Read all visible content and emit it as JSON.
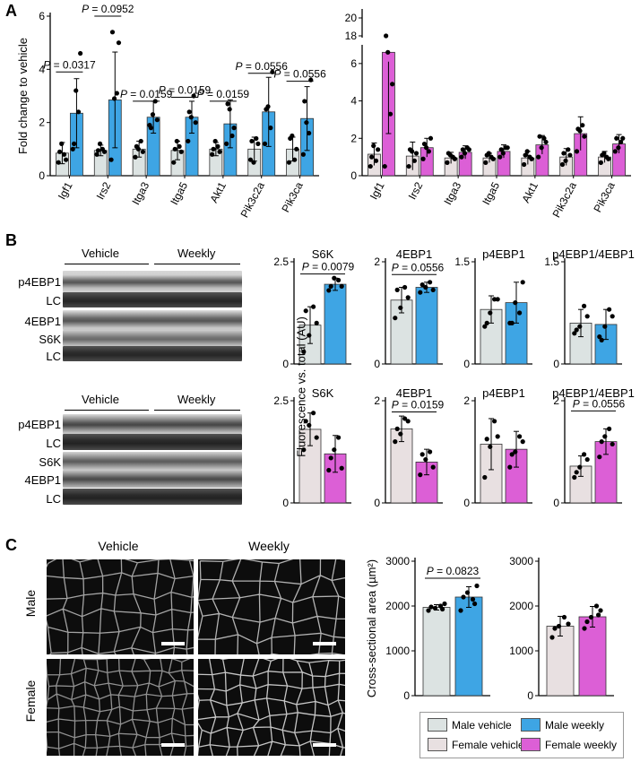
{
  "panels": {
    "A": "A",
    "B": "B",
    "C": "C"
  },
  "colors": {
    "male_vehicle": "#dce3e2",
    "male_weekly": "#3ea5e4",
    "female_vehicle": "#e8e0e1",
    "female_weekly": "#dc5fd6"
  },
  "blots": {
    "male": {
      "vehicle": "Vehicle",
      "weekly": "Weekly",
      "rows": [
        "p4EBP1",
        "LC",
        "4EBP1",
        "S6K",
        "LC"
      ]
    },
    "female": {
      "vehicle": "Vehicle",
      "weekly": "Weekly",
      "rows": [
        "p4EBP1",
        "LC",
        "S6K",
        "4EBP1",
        "LC"
      ]
    }
  },
  "micrographs": {
    "col_vehicle": "Vehicle",
    "col_weekly": "Weekly",
    "row_male": "Male",
    "row_female": "Female"
  },
  "legend": {
    "male_vehicle": "Male vehicle",
    "male_weekly": "Male weekly",
    "female_vehicle": "Female vehicle",
    "female_weekly": "Female weekly"
  },
  "chart_data": [
    {
      "id": "A-male",
      "type": "bar",
      "ylabel": "Fold change to vehicle",
      "ylim": [
        0,
        6
      ],
      "yticks": [
        0,
        2,
        4,
        6
      ],
      "categories": [
        "Igf1",
        "Irs2",
        "Itga3",
        "Itga5",
        "Akt1",
        "Pik3c2a",
        "Pik3ca"
      ],
      "series": [
        {
          "key": "male_vehicle",
          "values": [
            0.85,
            0.95,
            1.0,
            0.95,
            1.0,
            1.0,
            1.0
          ],
          "err": [
            0.4,
            0.2,
            0.3,
            0.35,
            0.25,
            0.45,
            0.45
          ],
          "points": [
            [
              0.5,
              0.8,
              1.2,
              0.6,
              0.9
            ],
            [
              0.8,
              1.0,
              1.2,
              0.9,
              0.95
            ],
            [
              0.7,
              1.3,
              1.0,
              0.9,
              1.1
            ],
            [
              0.5,
              1.1,
              1.3,
              0.9,
              1.0
            ],
            [
              0.8,
              1.1,
              1.3,
              0.9,
              1.0
            ],
            [
              0.6,
              1.4,
              0.5,
              1.2,
              1.3
            ],
            [
              0.5,
              0.6,
              1.5,
              1.0,
              1.4
            ]
          ]
        },
        {
          "key": "male_weekly",
          "values": [
            2.35,
            2.85,
            2.2,
            2.2,
            1.95,
            2.4,
            2.15
          ],
          "err": [
            1.3,
            1.8,
            0.6,
            0.6,
            0.9,
            1.3,
            1.2
          ],
          "points": [
            [
              1.0,
              2.4,
              3.2,
              4.6,
              1.2
            ],
            [
              0.6,
              3.1,
              2.9,
              5.0,
              5.4
            ],
            [
              1.9,
              2.8,
              2.3,
              2.1,
              1.8
            ],
            [
              1.3,
              3.0,
              2.2,
              2.0,
              2.4
            ],
            [
              1.2,
              1.5,
              2.5,
              1.8,
              2.7
            ],
            [
              1.2,
              1.8,
              2.6,
              3.9,
              2.5
            ],
            [
              0.8,
              1.6,
              2.0,
              3.6,
              2.8
            ]
          ]
        }
      ],
      "annotations": [
        {
          "cat": 0,
          "text": "P = 0.0317",
          "y": 3.9
        },
        {
          "cat": 1,
          "text": "P = 0.0952",
          "y": 6.0
        },
        {
          "cat": 2,
          "text": "P = 0.0159",
          "y": 2.8
        },
        {
          "cat": 3,
          "text": "P = 0.0159",
          "y": 2.95
        },
        {
          "cat": 4,
          "text": "P = 0.0159",
          "y": 2.8
        },
        {
          "cat": 5,
          "text": "P = 0.0556",
          "y": 3.85
        },
        {
          "cat": 6,
          "text": "P = 0.0556",
          "y": 3.55
        }
      ]
    },
    {
      "id": "A-female",
      "type": "bar",
      "ylabel": "",
      "ylim": [
        0,
        20
      ],
      "yticks": [
        0,
        2,
        4,
        6,
        18,
        20
      ],
      "broken_axis": [
        7,
        17
      ],
      "categories": [
        "Igf1",
        "Irs2",
        "Itga3",
        "Itga5",
        "Akt1",
        "Pik3c2a",
        "Pik3ca"
      ],
      "series": [
        {
          "key": "female_vehicle",
          "values": [
            1.15,
            1.05,
            0.95,
            0.95,
            0.95,
            1.0,
            1.0
          ],
          "err": [
            0.6,
            0.75,
            0.3,
            0.25,
            0.35,
            0.45,
            0.3
          ],
          "points": [
            [
              0.5,
              0.8,
              1.6,
              1.4,
              1.0
            ],
            [
              0.5,
              0.8,
              1.3,
              1.2,
              1.4
            ],
            [
              0.7,
              1.0,
              1.1,
              0.9,
              1.2
            ],
            [
              0.7,
              1.0,
              1.2,
              0.9,
              1.1
            ],
            [
              0.6,
              1.0,
              1.3,
              0.9,
              1.1
            ],
            [
              0.6,
              1.4,
              0.8,
              1.1,
              1.2
            ],
            [
              0.7,
              1.0,
              1.2,
              0.9,
              1.1
            ]
          ]
        },
        {
          "key": "female_weekly",
          "values": [
            6.6,
            1.5,
            1.25,
            1.3,
            1.65,
            2.25,
            1.7
          ],
          "err": [
            0.5,
            0.5,
            0.35,
            0.35,
            0.5,
            0.9,
            0.5
          ],
          "points": [
            [
              0.5,
              3.3,
              6.6,
              4.9,
              18.0
            ],
            [
              0.9,
              1.3,
              1.5,
              2.0,
              1.7
            ],
            [
              1.0,
              1.5,
              1.2,
              1.4,
              1.4
            ],
            [
              1.0,
              1.5,
              1.2,
              1.5,
              1.4
            ],
            [
              1.0,
              2.0,
              1.5,
              1.8,
              2.1
            ],
            [
              1.3,
              2.7,
              2.4,
              2.1,
              2.5
            ],
            [
              1.3,
              1.8,
              1.5,
              2.0,
              2.0
            ]
          ]
        }
      ]
    },
    {
      "id": "B-S6K-male",
      "type": "bar",
      "title": "S6K",
      "ylabel": "Fluorescence vs. total (AU)",
      "ylim": [
        0,
        2.5
      ],
      "yticks": [
        0,
        2.5
      ],
      "series": [
        {
          "key": "male_vehicle",
          "values": [
            0.95
          ],
          "err": [
            0.45
          ],
          "points": [
            [
              0.3,
              1.4,
              0.7,
              1.0,
              1.3
            ]
          ]
        },
        {
          "key": "male_weekly",
          "values": [
            1.95
          ],
          "err": [
            0.15
          ],
          "points": [
            [
              1.8,
              2.05,
              2.1,
              1.9,
              1.9
            ]
          ]
        }
      ],
      "annotations": [
        {
          "text": "P = 0.0079",
          "y": 2.2
        }
      ]
    },
    {
      "id": "B-4EBP1-male",
      "type": "bar",
      "title": "4EBP1",
      "ylabel": "",
      "ylim": [
        0,
        2
      ],
      "yticks": [
        0,
        2
      ],
      "series": [
        {
          "key": "male_vehicle",
          "values": [
            1.25
          ],
          "err": [
            0.25
          ],
          "points": [
            [
              0.9,
              1.5,
              1.1,
              1.3,
              1.45
            ]
          ]
        },
        {
          "key": "male_weekly",
          "values": [
            1.5
          ],
          "err": [
            0.1
          ],
          "points": [
            [
              1.4,
              1.6,
              1.5,
              1.45,
              1.55
            ]
          ]
        }
      ],
      "annotations": [
        {
          "text": "P = 0.0556",
          "y": 1.75
        }
      ]
    },
    {
      "id": "B-p4EBP1-male",
      "type": "bar",
      "title": "p4EBP1",
      "ylabel": "",
      "ylim": [
        0,
        1.5
      ],
      "yticks": [
        0,
        1.5
      ],
      "series": [
        {
          "key": "male_vehicle",
          "values": [
            0.8
          ],
          "err": [
            0.2
          ],
          "points": [
            [
              0.55,
              0.95,
              0.75,
              0.95,
              0.6
            ]
          ]
        },
        {
          "key": "male_weekly",
          "values": [
            0.9
          ],
          "err": [
            0.3
          ],
          "points": [
            [
              0.6,
              0.75,
              0.9,
              1.2,
              0.6
            ]
          ]
        }
      ]
    },
    {
      "id": "B-ratio-male",
      "type": "bar",
      "title": "p4EBP1/4EBP1",
      "ylabel": "",
      "ylim": [
        0,
        1.5
      ],
      "yticks": [
        0,
        1.5
      ],
      "series": [
        {
          "key": "male_vehicle",
          "values": [
            0.6
          ],
          "err": [
            0.2
          ],
          "points": [
            [
              0.45,
              0.85,
              0.55,
              0.7,
              0.5
            ]
          ]
        },
        {
          "key": "male_weekly",
          "values": [
            0.58
          ],
          "err": [
            0.22
          ],
          "points": [
            [
              0.4,
              0.8,
              0.55,
              0.7,
              0.35
            ]
          ]
        }
      ]
    },
    {
      "id": "B-S6K-female",
      "type": "bar",
      "title": "S6K",
      "ylabel": "",
      "ylim": [
        0,
        2.5
      ],
      "yticks": [
        0,
        2.5
      ],
      "series": [
        {
          "key": "female_vehicle",
          "values": [
            1.8
          ],
          "err": [
            0.4
          ],
          "points": [
            [
              1.3,
              2.2,
              1.9,
              1.6,
              2.0
            ]
          ]
        },
        {
          "key": "female_weekly",
          "values": [
            1.2
          ],
          "err": [
            0.45
          ],
          "points": [
            [
              0.8,
              1.6,
              1.3,
              0.85,
              1.1
            ]
          ]
        }
      ]
    },
    {
      "id": "B-4EBP1-female",
      "type": "bar",
      "title": "4EBP1",
      "ylabel": "",
      "ylim": [
        0,
        2
      ],
      "yticks": [
        0,
        2
      ],
      "series": [
        {
          "key": "female_vehicle",
          "values": [
            1.45
          ],
          "err": [
            0.25
          ],
          "points": [
            [
              1.2,
              1.65,
              1.35,
              1.6,
              1.45
            ]
          ]
        },
        {
          "key": "female_weekly",
          "values": [
            0.8
          ],
          "err": [
            0.25
          ],
          "points": [
            [
              0.55,
              1.0,
              0.85,
              0.7,
              0.95
            ]
          ]
        }
      ],
      "annotations": [
        {
          "text": "P = 0.0159",
          "y": 1.78
        }
      ]
    },
    {
      "id": "B-p4EBP1-female",
      "type": "bar",
      "title": "p4EBP1",
      "ylabel": "",
      "ylim": [
        0,
        2
      ],
      "yticks": [
        0,
        2
      ],
      "series": [
        {
          "key": "female_vehicle",
          "values": [
            1.15
          ],
          "err": [
            0.5
          ],
          "points": [
            [
              0.5,
              1.6,
              1.1,
              1.3,
              1.25
            ]
          ]
        },
        {
          "key": "female_weekly",
          "values": [
            1.05
          ],
          "err": [
            0.35
          ],
          "points": [
            [
              0.7,
              1.3,
              1.0,
              1.2,
              0.95
            ]
          ]
        }
      ]
    },
    {
      "id": "B-ratio-female",
      "type": "bar",
      "title": "p4EBP1/4EBP1",
      "ylabel": "",
      "ylim": [
        0,
        2
      ],
      "yticks": [
        0,
        2
      ],
      "series": [
        {
          "key": "female_vehicle",
          "values": [
            0.72
          ],
          "err": [
            0.2
          ],
          "points": [
            [
              0.5,
              0.95,
              0.7,
              0.85,
              0.6
            ]
          ]
        },
        {
          "key": "female_weekly",
          "values": [
            1.2
          ],
          "err": [
            0.25
          ],
          "points": [
            [
              0.9,
              1.45,
              1.3,
              1.15,
              1.2
            ]
          ]
        }
      ],
      "annotations": [
        {
          "text": "P = 0.0556",
          "y": 1.8
        }
      ]
    },
    {
      "id": "C-male",
      "type": "bar",
      "ylabel": "Cross-sectional area (µm²)",
      "ylim": [
        0,
        3000
      ],
      "yticks": [
        0,
        1000,
        2000,
        3000
      ],
      "series": [
        {
          "key": "male_vehicle",
          "values": [
            1970
          ],
          "err": [
            60
          ],
          "points": [
            [
              1900,
              2000,
              1950,
              2050,
              1980,
              1930
            ]
          ]
        },
        {
          "key": "male_weekly",
          "values": [
            2200
          ],
          "err": [
            230
          ],
          "points": [
            [
              1900,
              2150,
              2300,
              2450,
              2200,
              2050
            ]
          ]
        }
      ],
      "annotations": [
        {
          "text": "P = 0.0823",
          "y": 2620
        }
      ]
    },
    {
      "id": "C-female",
      "type": "bar",
      "ylabel": "",
      "ylim": [
        0,
        3000
      ],
      "yticks": [
        0,
        1000,
        2000,
        3000
      ],
      "series": [
        {
          "key": "female_vehicle",
          "values": [
            1550
          ],
          "err": [
            220
          ],
          "points": [
            [
              1300,
              1750,
              1550,
              1600,
              1500
            ]
          ]
        },
        {
          "key": "female_weekly",
          "values": [
            1760
          ],
          "err": [
            230
          ],
          "points": [
            [
              1500,
              2000,
              1750,
              1900,
              1650,
              1800
            ]
          ]
        }
      ]
    }
  ]
}
